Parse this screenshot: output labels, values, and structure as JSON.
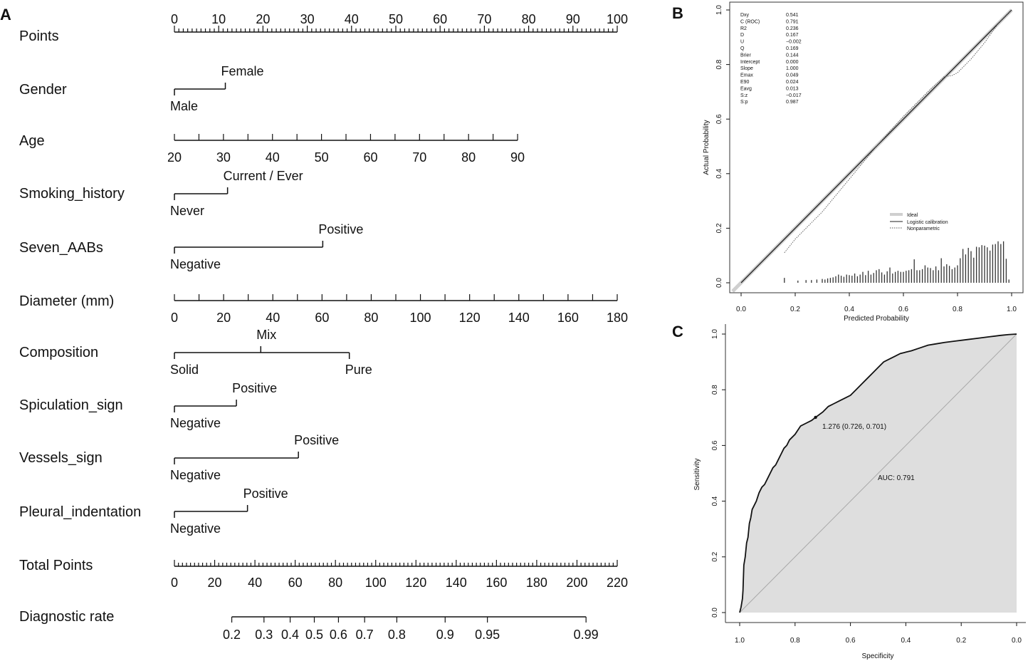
{
  "chart_data": [
    {
      "panel": "A",
      "type": "nomogram",
      "variables": [
        {
          "name": "Points",
          "kind": "axis",
          "ticks": [
            "0",
            "10",
            "20",
            "30",
            "40",
            "50",
            "60",
            "70",
            "80",
            "90",
            "100"
          ]
        },
        {
          "name": "Gender",
          "kind": "categorical",
          "levels": [
            {
              "label": "Male",
              "points": 0
            },
            {
              "label": "Female",
              "points": 11.5
            }
          ]
        },
        {
          "name": "Age",
          "kind": "continuous",
          "range": [
            20,
            90
          ],
          "ticks": [
            "20",
            "30",
            "40",
            "50",
            "60",
            "70",
            "80",
            "90"
          ],
          "points_at_max": 77.5
        },
        {
          "name": "Smoking_history",
          "kind": "categorical",
          "levels": [
            {
              "label": "Never",
              "points": 0
            },
            {
              "label": "Current / Ever",
              "points": 12
            }
          ]
        },
        {
          "name": "Seven_AABs",
          "kind": "categorical",
          "levels": [
            {
              "label": "Negative",
              "points": 0
            },
            {
              "label": "Positive",
              "points": 33.5
            }
          ]
        },
        {
          "name": "Diameter (mm)",
          "kind": "continuous",
          "range": [
            0,
            180
          ],
          "ticks": [
            "0",
            "20",
            "40",
            "60",
            "80",
            "100",
            "120",
            "140",
            "160",
            "180"
          ],
          "points_at_max": 100
        },
        {
          "name": "Composition",
          "kind": "categorical",
          "levels": [
            {
              "label": "Solid",
              "points": 0
            },
            {
              "label": "Mix",
              "points": 19.5
            },
            {
              "label": "Pure",
              "points": 39.5
            }
          ]
        },
        {
          "name": "Spiculation_sign",
          "kind": "categorical",
          "levels": [
            {
              "label": "Negative",
              "points": 0
            },
            {
              "label": "Positive",
              "points": 14
            }
          ]
        },
        {
          "name": "Vessels_sign",
          "kind": "categorical",
          "levels": [
            {
              "label": "Negative",
              "points": 0
            },
            {
              "label": "Positive",
              "points": 28
            }
          ]
        },
        {
          "name": "Pleural_indentation",
          "kind": "categorical",
          "levels": [
            {
              "label": "Negative",
              "points": 0
            },
            {
              "label": "Positive",
              "points": 16.5
            }
          ]
        },
        {
          "name": "Total Points",
          "kind": "axis",
          "range": [
            0,
            220
          ],
          "ticks": [
            "0",
            "20",
            "40",
            "60",
            "80",
            "100",
            "120",
            "140",
            "160",
            "180",
            "200",
            "220"
          ]
        },
        {
          "name": "Diagnostic rate",
          "kind": "probability",
          "ticks": [
            {
              "label": "0.2",
              "total_points": 28.5
            },
            {
              "label": "0.3",
              "total_points": 44.5
            },
            {
              "label": "0.4",
              "total_points": 57.5
            },
            {
              "label": "0.5",
              "total_points": 69.5
            },
            {
              "label": "0.6",
              "total_points": 81.5
            },
            {
              "label": "0.7",
              "total_points": 94.5
            },
            {
              "label": "0.8",
              "total_points": 110.5
            },
            {
              "label": "0.9",
              "total_points": 134.5
            },
            {
              "label": "0.95",
              "total_points": 155.5
            },
            {
              "label": "0.99",
              "total_points": 204.5
            }
          ]
        }
      ]
    },
    {
      "panel": "B",
      "type": "line",
      "title": "",
      "xlabel": "Predicted Probability",
      "ylabel": "Actual Probability",
      "xlim": [
        0,
        1
      ],
      "ylim": [
        0,
        1
      ],
      "xticks": [
        "0.0",
        "0.2",
        "0.4",
        "0.6",
        "0.8",
        "1.0"
      ],
      "yticks": [
        "0.0",
        "0.2",
        "0.4",
        "0.6",
        "0.8",
        "1.0"
      ],
      "stats": [
        {
          "name": "Dxy",
          "value": "0.541"
        },
        {
          "name": "C (ROC)",
          "value": "0.791"
        },
        {
          "name": "R2",
          "value": "0.236"
        },
        {
          "name": "D",
          "value": "0.167"
        },
        {
          "name": "U",
          "value": "−0.002"
        },
        {
          "name": "Q",
          "value": "0.169"
        },
        {
          "name": "Brier",
          "value": "0.144"
        },
        {
          "name": "Intercept",
          "value": "0.000"
        },
        {
          "name": "Slope",
          "value": "1.000"
        },
        {
          "name": "Emax",
          "value": "0.049"
        },
        {
          "name": "E90",
          "value": "0.024"
        },
        {
          "name": "Eavg",
          "value": "0.013"
        },
        {
          "name": "S:z",
          "value": "−0.017"
        },
        {
          "name": "S:p",
          "value": "0.987"
        }
      ],
      "legend": [
        "Ideal",
        "Logistic calibration",
        "Nonparametric"
      ],
      "series": [
        {
          "name": "Ideal",
          "x": [
            0,
            1
          ],
          "y": [
            0,
            1
          ]
        },
        {
          "name": "Logistic calibration",
          "x": [
            0,
            1
          ],
          "y": [
            0,
            1
          ]
        },
        {
          "name": "Nonparametric",
          "x": [
            0.16,
            0.2,
            0.3,
            0.4,
            0.5,
            0.6,
            0.7,
            0.75,
            0.78,
            0.8,
            0.85,
            0.9,
            0.95,
            1.0
          ],
          "y": [
            0.11,
            0.16,
            0.26,
            0.38,
            0.5,
            0.61,
            0.71,
            0.755,
            0.76,
            0.77,
            0.82,
            0.88,
            0.95,
            1.0
          ]
        }
      ],
      "rug": [
        {
          "x": 0.16,
          "h": 0.018
        },
        {
          "x": 0.21,
          "h": 0.008
        },
        {
          "x": 0.24,
          "h": 0.01
        },
        {
          "x": 0.26,
          "h": 0.01
        },
        {
          "x": 0.28,
          "h": 0.012
        },
        {
          "x": 0.3,
          "h": 0.014
        },
        {
          "x": 0.31,
          "h": 0.012
        },
        {
          "x": 0.32,
          "h": 0.016
        },
        {
          "x": 0.33,
          "h": 0.018
        },
        {
          "x": 0.34,
          "h": 0.02
        },
        {
          "x": 0.35,
          "h": 0.024
        },
        {
          "x": 0.36,
          "h": 0.03
        },
        {
          "x": 0.37,
          "h": 0.026
        },
        {
          "x": 0.38,
          "h": 0.022
        },
        {
          "x": 0.39,
          "h": 0.03
        },
        {
          "x": 0.4,
          "h": 0.028
        },
        {
          "x": 0.41,
          "h": 0.026
        },
        {
          "x": 0.42,
          "h": 0.034
        },
        {
          "x": 0.43,
          "h": 0.024
        },
        {
          "x": 0.44,
          "h": 0.03
        },
        {
          "x": 0.45,
          "h": 0.04
        },
        {
          "x": 0.46,
          "h": 0.028
        },
        {
          "x": 0.47,
          "h": 0.044
        },
        {
          "x": 0.48,
          "h": 0.03
        },
        {
          "x": 0.49,
          "h": 0.036
        },
        {
          "x": 0.5,
          "h": 0.046
        },
        {
          "x": 0.51,
          "h": 0.05
        },
        {
          "x": 0.52,
          "h": 0.038
        },
        {
          "x": 0.53,
          "h": 0.03
        },
        {
          "x": 0.54,
          "h": 0.042
        },
        {
          "x": 0.55,
          "h": 0.056
        },
        {
          "x": 0.56,
          "h": 0.034
        },
        {
          "x": 0.57,
          "h": 0.04
        },
        {
          "x": 0.58,
          "h": 0.044
        },
        {
          "x": 0.59,
          "h": 0.04
        },
        {
          "x": 0.6,
          "h": 0.04
        },
        {
          "x": 0.61,
          "h": 0.044
        },
        {
          "x": 0.62,
          "h": 0.046
        },
        {
          "x": 0.63,
          "h": 0.05
        },
        {
          "x": 0.64,
          "h": 0.086
        },
        {
          "x": 0.65,
          "h": 0.046
        },
        {
          "x": 0.66,
          "h": 0.046
        },
        {
          "x": 0.67,
          "h": 0.05
        },
        {
          "x": 0.68,
          "h": 0.064
        },
        {
          "x": 0.69,
          "h": 0.056
        },
        {
          "x": 0.7,
          "h": 0.054
        },
        {
          "x": 0.71,
          "h": 0.046
        },
        {
          "x": 0.72,
          "h": 0.06
        },
        {
          "x": 0.73,
          "h": 0.046
        },
        {
          "x": 0.74,
          "h": 0.09
        },
        {
          "x": 0.75,
          "h": 0.06
        },
        {
          "x": 0.76,
          "h": 0.068
        },
        {
          "x": 0.77,
          "h": 0.062
        },
        {
          "x": 0.78,
          "h": 0.05
        },
        {
          "x": 0.79,
          "h": 0.056
        },
        {
          "x": 0.8,
          "h": 0.064
        },
        {
          "x": 0.81,
          "h": 0.09
        },
        {
          "x": 0.82,
          "h": 0.124
        },
        {
          "x": 0.83,
          "h": 0.104
        },
        {
          "x": 0.84,
          "h": 0.128
        },
        {
          "x": 0.85,
          "h": 0.116
        },
        {
          "x": 0.86,
          "h": 0.092
        },
        {
          "x": 0.87,
          "h": 0.132
        },
        {
          "x": 0.88,
          "h": 0.13
        },
        {
          "x": 0.89,
          "h": 0.138
        },
        {
          "x": 0.9,
          "h": 0.136
        },
        {
          "x": 0.91,
          "h": 0.13
        },
        {
          "x": 0.92,
          "h": 0.118
        },
        {
          "x": 0.93,
          "h": 0.14
        },
        {
          "x": 0.94,
          "h": 0.142
        },
        {
          "x": 0.95,
          "h": 0.152
        },
        {
          "x": 0.96,
          "h": 0.142
        },
        {
          "x": 0.97,
          "h": 0.152
        },
        {
          "x": 0.98,
          "h": 0.088
        },
        {
          "x": 0.99,
          "h": 0.012
        }
      ]
    },
    {
      "panel": "C",
      "type": "line",
      "title": "",
      "xlabel": "Specificity",
      "ylabel": "Sensitivity",
      "xlim": [
        1,
        0
      ],
      "ylim": [
        0,
        1
      ],
      "xticks": [
        "1.0",
        "0.8",
        "0.6",
        "0.4",
        "0.2",
        "0.0"
      ],
      "yticks": [
        "0.0",
        "0.2",
        "0.4",
        "0.6",
        "0.8",
        "1.0"
      ],
      "auc_label": "AUC: 0.791",
      "threshold_label": "1.276 (0.726, 0.701)",
      "threshold_point": {
        "specificity": 0.726,
        "sensitivity": 0.701
      },
      "series": [
        {
          "name": "ROC",
          "specificity": [
            1.0,
            0.995,
            0.99,
            0.988,
            0.985,
            0.98,
            0.975,
            0.97,
            0.965,
            0.96,
            0.955,
            0.95,
            0.94,
            0.93,
            0.92,
            0.91,
            0.9,
            0.89,
            0.88,
            0.87,
            0.86,
            0.85,
            0.84,
            0.83,
            0.82,
            0.8,
            0.78,
            0.76,
            0.74,
            0.726,
            0.7,
            0.68,
            0.66,
            0.64,
            0.62,
            0.6,
            0.58,
            0.56,
            0.54,
            0.52,
            0.5,
            0.48,
            0.46,
            0.44,
            0.42,
            0.4,
            0.38,
            0.35,
            0.32,
            0.29,
            0.26,
            0.22,
            0.18,
            0.14,
            0.1,
            0.06,
            0.03,
            0.0
          ],
          "sensitivity": [
            0.0,
            0.02,
            0.05,
            0.08,
            0.17,
            0.2,
            0.25,
            0.27,
            0.32,
            0.34,
            0.37,
            0.38,
            0.4,
            0.43,
            0.45,
            0.46,
            0.48,
            0.5,
            0.52,
            0.53,
            0.55,
            0.57,
            0.59,
            0.6,
            0.62,
            0.64,
            0.67,
            0.68,
            0.69,
            0.701,
            0.72,
            0.74,
            0.75,
            0.76,
            0.77,
            0.78,
            0.8,
            0.82,
            0.84,
            0.86,
            0.88,
            0.9,
            0.91,
            0.92,
            0.93,
            0.935,
            0.94,
            0.95,
            0.96,
            0.965,
            0.97,
            0.975,
            0.98,
            0.985,
            0.99,
            0.995,
            0.998,
            1.0
          ]
        }
      ]
    }
  ],
  "panel_labels": {
    "a": "A",
    "b": "B",
    "c": "C"
  }
}
